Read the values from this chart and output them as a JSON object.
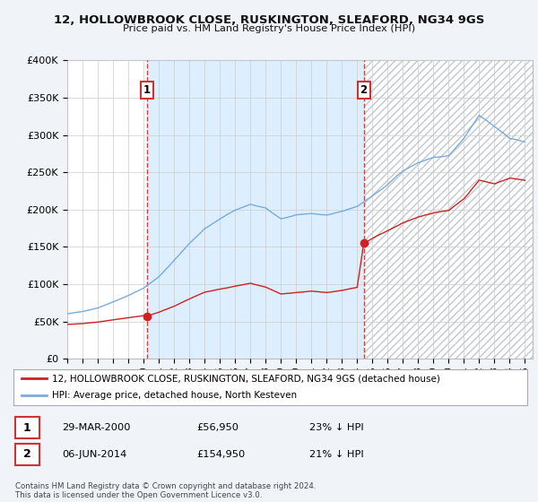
{
  "title": "12, HOLLOWBROOK CLOSE, RUSKINGTON, SLEAFORD, NG34 9GS",
  "subtitle": "Price paid vs. HM Land Registry's House Price Index (HPI)",
  "legend_line1": "12, HOLLOWBROOK CLOSE, RUSKINGTON, SLEAFORD, NG34 9GS (detached house)",
  "legend_line2": "HPI: Average price, detached house, North Kesteven",
  "footer": "Contains HM Land Registry data © Crown copyright and database right 2024.\nThis data is licensed under the Open Government Licence v3.0.",
  "transaction1_date": "29-MAR-2000",
  "transaction1_price": "£56,950",
  "transaction1_hpi": "23% ↓ HPI",
  "transaction2_date": "06-JUN-2014",
  "transaction2_price": "£154,950",
  "transaction2_hpi": "21% ↓ HPI",
  "sale1_year": 2000.24,
  "sale1_price": 56950,
  "sale2_year": 2014.43,
  "sale2_price": 154950,
  "ylim": [
    0,
    400000
  ],
  "xlim_left": 1995.0,
  "xlim_right": 2025.5,
  "hpi_color": "#7aabdb",
  "price_color": "#cc2222",
  "dashed_color": "#cc3333",
  "shade_color": "#ddeeff",
  "bg_color": "#f0f4f8",
  "plot_bg": "#ffffff",
  "grid_color": "#cccccc",
  "hatch_color": "#cccccc"
}
